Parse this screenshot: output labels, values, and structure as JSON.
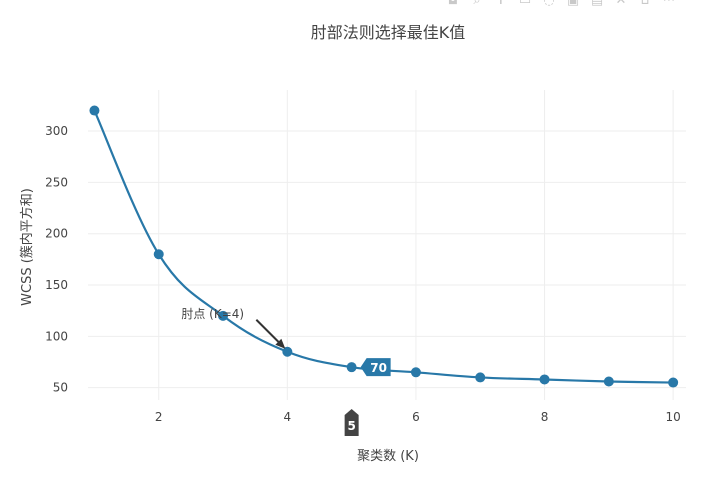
{
  "toolbar": {
    "icons": [
      "camera-icon",
      "zoom-icon",
      "pan-icon",
      "box-select-icon",
      "lasso-icon",
      "zoom-in-icon",
      "zoom-out-icon",
      "autoscale-icon",
      "reset-icon",
      "plotly-logo-icon"
    ]
  },
  "chart_data": {
    "type": "line",
    "title": "肘部法则选择最佳K值",
    "xlabel": "聚类数 (K)",
    "ylabel": "WCSS (簇内平方和)",
    "xlim": [
      0.9,
      10.2
    ],
    "ylim": [
      38,
      340
    ],
    "xticks": [
      2,
      4,
      6,
      8,
      10
    ],
    "yticks": [
      50,
      100,
      150,
      200,
      250,
      300
    ],
    "grid": true,
    "line_color": "#2878a8",
    "series": [
      {
        "x": [
          1,
          2,
          3,
          4,
          5,
          6,
          7,
          8,
          9,
          10
        ],
        "y": [
          320,
          180,
          120,
          85,
          70,
          65,
          60,
          58,
          56,
          55
        ]
      }
    ],
    "annotations": [
      {
        "text": "肘点 (K=4)",
        "x": 4,
        "y": 85
      }
    ],
    "hover": {
      "x_label": "5",
      "y_label": "70",
      "x": 5,
      "y": 70,
      "x_color": "#444444",
      "y_color": "#2878a8"
    }
  }
}
